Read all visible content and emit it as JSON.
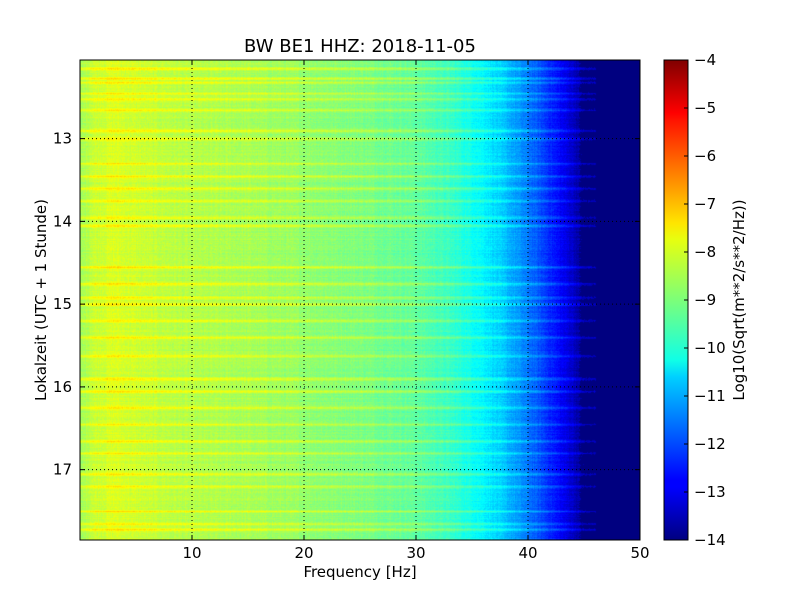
{
  "chart_data": {
    "type": "heatmap",
    "title": "BW BE1 HHZ: 2018-11-05",
    "xlabel": "Frequency [Hz]",
    "ylabel": "Lokalzeit (UTC + 1 Stunde)",
    "colorbar_label": "Log10(Sqrt(m**2/s**2/Hz))",
    "colormap": "jet",
    "xlim": [
      0,
      50
    ],
    "ylim": [
      12.05,
      17.85
    ],
    "y_inverted": true,
    "xticks": [
      10,
      20,
      30,
      40,
      50
    ],
    "xtick_labels": [
      "10",
      "20",
      "30",
      "40",
      "50"
    ],
    "yticks": [
      13,
      14,
      15,
      16,
      17
    ],
    "ytick_labels": [
      "13",
      "14",
      "15",
      "16",
      "17"
    ],
    "clim": [
      -14,
      -4
    ],
    "cticks": [
      -4,
      -5,
      -6,
      -7,
      -8,
      -9,
      -10,
      -11,
      -12,
      -13,
      -14
    ],
    "ctick_labels": [
      "−4",
      "−5",
      "−6",
      "−7",
      "−8",
      "−9",
      "−10",
      "−11",
      "−12",
      "−13",
      "−14"
    ],
    "grid": true,
    "spectral_profile": {
      "frequency_hz": [
        0,
        1,
        3,
        6,
        10,
        15,
        20,
        25,
        30,
        33,
        36,
        38,
        40,
        42,
        44,
        45,
        50
      ],
      "log10_amplitude": [
        -8.7,
        -8.3,
        -8.1,
        -8.3,
        -8.5,
        -8.6,
        -8.8,
        -9.0,
        -9.3,
        -9.7,
        -10.3,
        -10.9,
        -11.6,
        -12.4,
        -13.3,
        -14.0,
        -14.0
      ]
    },
    "noise_bursts_hour": [
      12.15,
      12.27,
      12.32,
      12.45,
      12.52,
      12.65,
      12.9,
      13.0,
      13.3,
      13.45,
      13.6,
      13.75,
      13.95,
      14.05,
      14.55,
      14.75,
      14.92,
      15.0,
      15.2,
      15.4,
      15.62,
      15.9,
      16.05,
      16.25,
      16.45,
      16.65,
      16.8,
      17.05,
      17.2,
      17.5,
      17.65,
      17.72
    ],
    "colorbar": {
      "min": -14,
      "max": -4
    }
  }
}
